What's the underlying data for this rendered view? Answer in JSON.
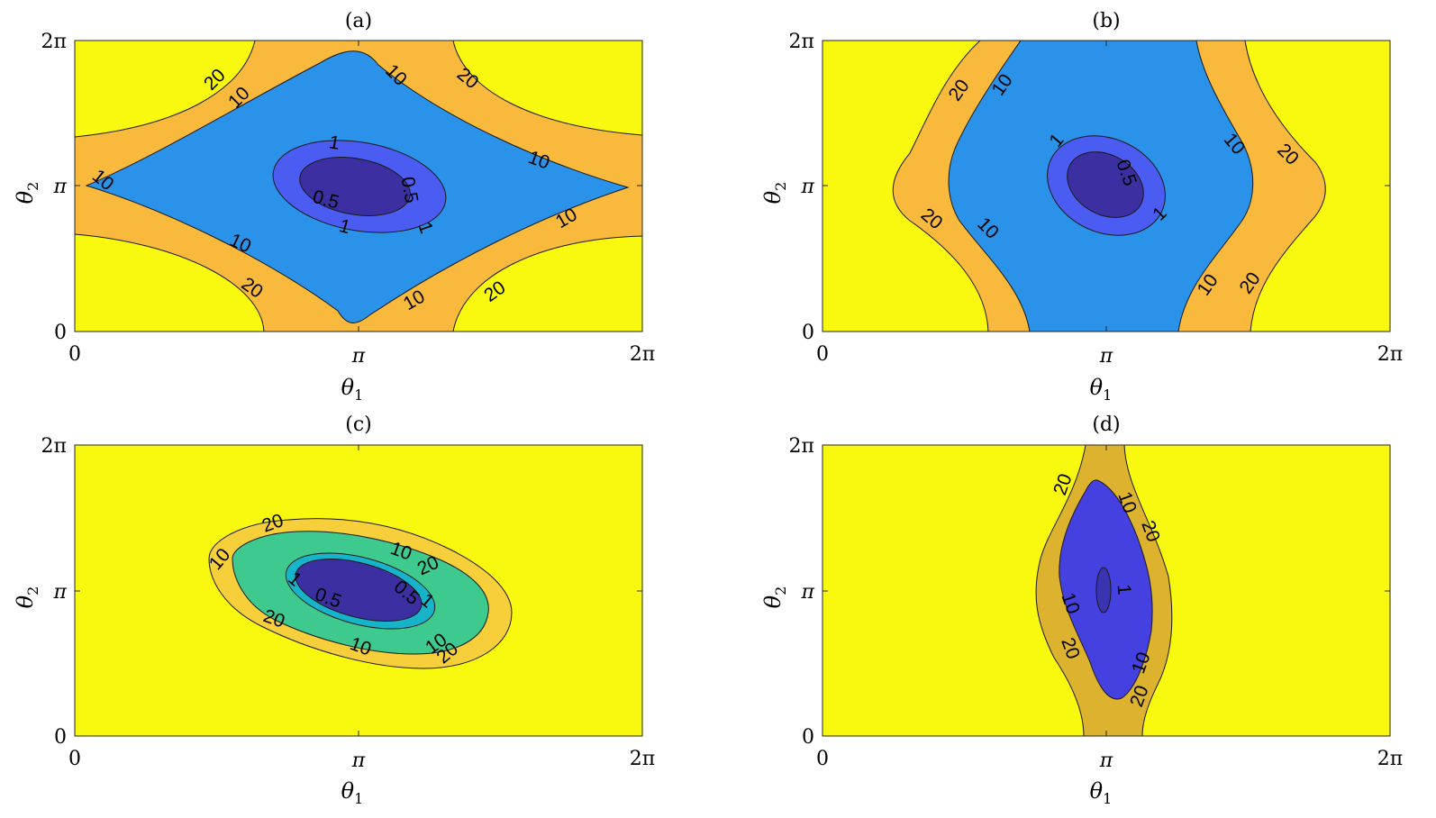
{
  "colors": {
    "yellow": "#f9f80f",
    "orange": "#f9b93c",
    "blue_light": "#2b92ea",
    "blue_mid": "#4a5cf1",
    "indigo": "#3b2fa2",
    "green": "#3ec98e",
    "cyan": "#17b4c9",
    "gold_c": "#f6cf3a",
    "gold_d": "#dcb22e",
    "blue_d": "#4540e0",
    "indigo_d": "#3a34b0",
    "line": "#1a1a1a",
    "axis": "#262626"
  },
  "chart_data": [
    {
      "panel": "a",
      "type": "contour",
      "title": "(a)",
      "xlabel": "θ",
      "xlabel_sub": "1",
      "ylabel": "θ",
      "ylabel_sub": "2",
      "xlim": [
        "0",
        "2π"
      ],
      "ylim": [
        "0",
        "2π"
      ],
      "xticks": [
        "0",
        "π",
        "2π"
      ],
      "yticks": [
        "0",
        "π",
        "2π"
      ],
      "levels": [
        "0.5",
        "1",
        "10",
        "20"
      ],
      "contour_labels": [
        "20",
        "10",
        "10",
        "1",
        "0.5",
        "0.5",
        "1",
        "10",
        "10",
        "10",
        "10",
        "20",
        "20",
        "20",
        "10",
        "1"
      ]
    },
    {
      "panel": "b",
      "type": "contour",
      "title": "(b)",
      "xlabel": "θ",
      "xlabel_sub": "1",
      "ylabel": "θ",
      "ylabel_sub": "2",
      "xlim": [
        "0",
        "2π"
      ],
      "ylim": [
        "0",
        "2π"
      ],
      "xticks": [
        "0",
        "π",
        "2π"
      ],
      "yticks": [
        "0",
        "π",
        "2π"
      ],
      "levels": [
        "0.5",
        "1",
        "10",
        "20"
      ],
      "contour_labels": [
        "20",
        "10",
        "1",
        "0.5",
        "1",
        "10",
        "20",
        "20",
        "10",
        "10",
        "20"
      ]
    },
    {
      "panel": "c",
      "type": "contour",
      "title": "(c)",
      "xlabel": "θ",
      "xlabel_sub": "1",
      "ylabel": "θ",
      "ylabel_sub": "2",
      "xlim": [
        "0",
        "2π"
      ],
      "ylim": [
        "0",
        "2π"
      ],
      "xticks": [
        "0",
        "π",
        "2π"
      ],
      "yticks": [
        "0",
        "π",
        "2π"
      ],
      "levels": [
        "0.5",
        "1",
        "10",
        "20"
      ],
      "contour_labels": [
        "20",
        "10",
        "10",
        "20",
        "1",
        "0.5",
        "0.5",
        "1",
        "20",
        "10",
        "10",
        "20"
      ]
    },
    {
      "panel": "d",
      "type": "contour",
      "title": "(d)",
      "xlabel": "θ",
      "xlabel_sub": "1",
      "ylabel": "θ",
      "ylabel_sub": "2",
      "xlim": [
        "0",
        "2π"
      ],
      "ylim": [
        "0",
        "2π"
      ],
      "xticks": [
        "0",
        "π",
        "2π"
      ],
      "yticks": [
        "0",
        "π",
        "2π"
      ],
      "levels": [
        "1",
        "10",
        "20"
      ],
      "contour_labels": [
        "20",
        "10",
        "20",
        "1",
        "10",
        "20",
        "10",
        "20"
      ]
    }
  ]
}
